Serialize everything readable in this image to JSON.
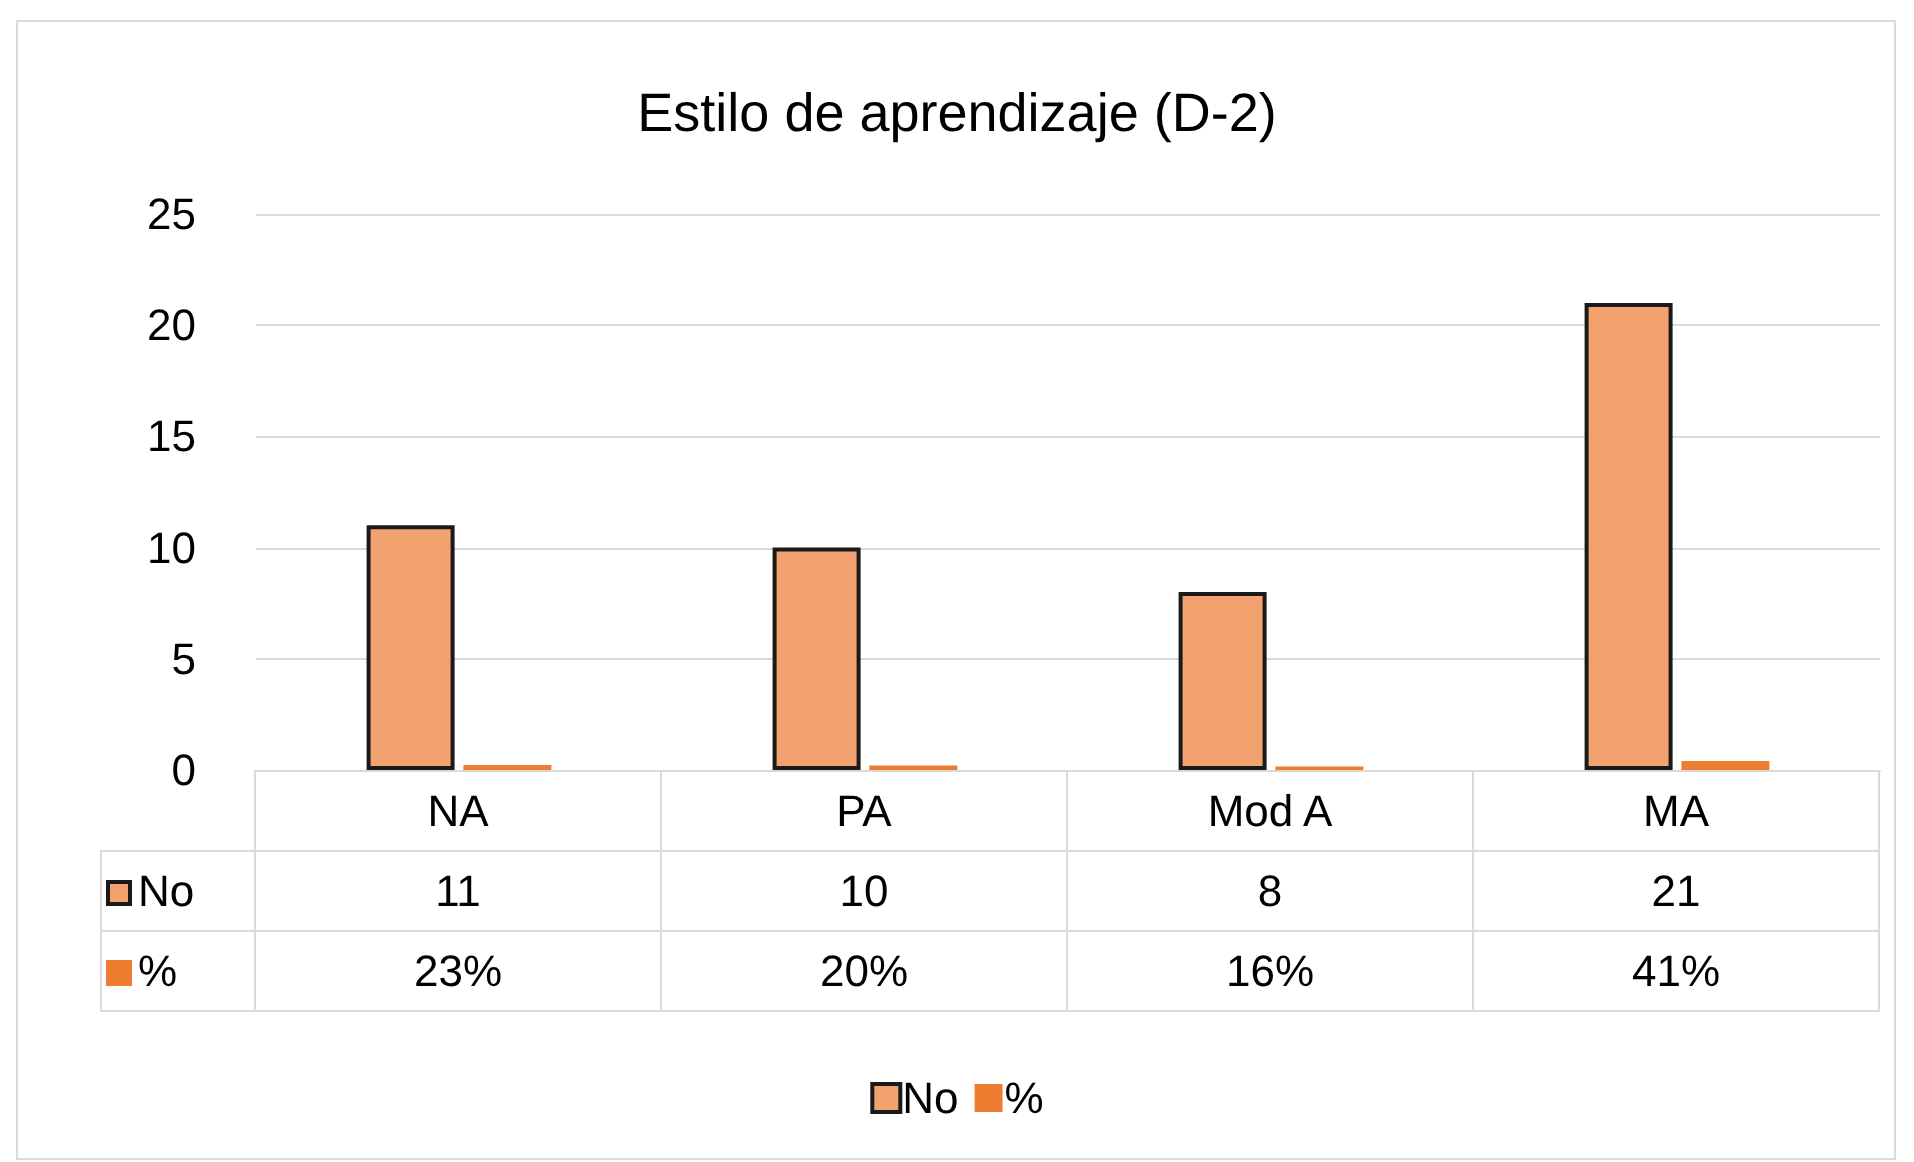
{
  "chart_data": {
    "type": "bar",
    "title": "Estilo de aprendizaje (D-2)",
    "categories": [
      "NA",
      "PA",
      "Mod A",
      "MA"
    ],
    "series": [
      {
        "name": "No",
        "color": "#f2a26e",
        "values": [
          11,
          10,
          8,
          21
        ],
        "value_labels": [
          "11",
          "10",
          "8",
          "21"
        ]
      },
      {
        "name": "%",
        "color": "#ed7d31",
        "values": [
          0.23,
          0.2,
          0.16,
          0.41
        ],
        "value_labels": [
          "23%",
          "20%",
          "16%",
          "41%"
        ]
      }
    ],
    "ylim": [
      0,
      25
    ],
    "yticks": [
      0,
      5,
      10,
      15,
      20,
      25
    ],
    "grid": "y",
    "legend": "bottom"
  }
}
